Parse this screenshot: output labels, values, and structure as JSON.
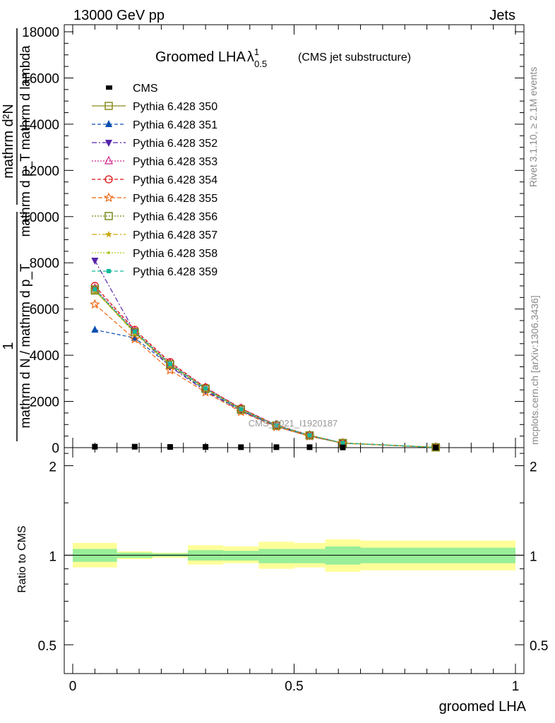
{
  "header": {
    "left": "13000 GeV pp",
    "right": "Jets"
  },
  "chart_data": {
    "type": "line",
    "title": "Groomed LHA",
    "title_lambda": "λ",
    "title_sup": "1",
    "title_sub": "0.5",
    "subtitle": "(CMS jet substructure)",
    "ylabel_main": "1 / mathrm d N / mathrm d p mathrm d p_T mathrm d lambda",
    "ylabel_num": "mathrm d²N",
    "ylabel_den": "mathrm d p_T mathrm d lambda",
    "ylabel_lead": "1",
    "ylabel_lower": "mathrm d N / mathrm d p_T",
    "ylabel_ratio": "Ratio to CMS",
    "xlabel": "groomed LHA",
    "watermark": "CMS_2021_I1920187",
    "side_top": "Rivet 3.1.10, ≥ 2.1M events",
    "side_bottom": "mcplots.cern.ch [arXiv:1306.3436]",
    "xlim": [
      0,
      1
    ],
    "ylim": [
      0,
      18000
    ],
    "ratio_ylim": [
      0.4,
      2.3
    ],
    "yticks": [
      {
        "v": 0,
        "label": "0"
      },
      {
        "v": 2000,
        "label": "2000"
      },
      {
        "v": 4000,
        "label": "4000"
      },
      {
        "v": 6000,
        "label": "6000"
      },
      {
        "v": 8000,
        "label": "8000"
      },
      {
        "v": 10000,
        "label": "10000"
      },
      {
        "v": 12000,
        "label": "12000"
      },
      {
        "v": 14000,
        "label": "14000"
      },
      {
        "v": 16000,
        "label": "16000"
      },
      {
        "v": 18000,
        "label": "18000"
      }
    ],
    "xticks": [
      {
        "v": 0,
        "label": "0"
      },
      {
        "v": 0.5,
        "label": "0.5"
      },
      {
        "v": 1,
        "label": "1"
      }
    ],
    "ratio_yticks": [
      {
        "v": 0.5,
        "label": "0.5"
      },
      {
        "v": 1,
        "label": "1"
      },
      {
        "v": 2,
        "label": "2"
      }
    ],
    "x": [
      0.05,
      0.14,
      0.22,
      0.3,
      0.38,
      0.46,
      0.535,
      0.61,
      0.82
    ],
    "cms": [
      40,
      40,
      30,
      30,
      20,
      20,
      20,
      10,
      5
    ],
    "series": [
      {
        "name": "Pythia 6.428 350",
        "color": "#8a8a1e",
        "dash": "",
        "marker": "square-open",
        "values": [
          6800,
          5000,
          3600,
          2550,
          1650,
          950,
          530,
          200,
          15
        ]
      },
      {
        "name": "Pythia 6.428 351",
        "color": "#0a4db0",
        "dash": "5,3",
        "marker": "triangle-up",
        "values": [
          5100,
          4750,
          3550,
          2500,
          1600,
          920,
          500,
          190,
          12
        ]
      },
      {
        "name": "Pythia 6.428 352",
        "color": "#5522aa",
        "dash": "7,3,2,3",
        "marker": "triangle-down",
        "values": [
          8100,
          5000,
          3500,
          2450,
          1600,
          920,
          500,
          190,
          12
        ]
      },
      {
        "name": "Pythia 6.428 353",
        "color": "#cc2288",
        "dash": "2,2",
        "marker": "triangle-up-open",
        "values": [
          6900,
          5050,
          3650,
          2600,
          1700,
          980,
          540,
          200,
          14
        ]
      },
      {
        "name": "Pythia 6.428 354",
        "color": "#dd1111",
        "dash": "5,3",
        "marker": "circle-open",
        "values": [
          7000,
          5100,
          3700,
          2600,
          1700,
          980,
          540,
          200,
          14
        ]
      },
      {
        "name": "Pythia 6.428 355",
        "color": "#ee6611",
        "dash": "6,3",
        "marker": "star-open",
        "values": [
          6200,
          4700,
          3350,
          2400,
          1550,
          900,
          490,
          185,
          12
        ]
      },
      {
        "name": "Pythia 6.428 356",
        "color": "#7a8a1a",
        "dash": "2,2",
        "marker": "square-open",
        "values": [
          6850,
          5000,
          3600,
          2550,
          1650,
          960,
          530,
          200,
          14
        ]
      },
      {
        "name": "Pythia 6.428 357",
        "color": "#ccaa11",
        "dash": "7,3,2,3",
        "marker": "star-small",
        "values": [
          6800,
          4950,
          3580,
          2530,
          1640,
          950,
          525,
          198,
          13
        ]
      },
      {
        "name": "Pythia 6.428 358",
        "color": "#aacc22",
        "dash": "2,2",
        "marker": "dot",
        "values": [
          6820,
          4980,
          3600,
          2540,
          1650,
          955,
          528,
          199,
          13
        ]
      },
      {
        "name": "Pythia 6.428 359",
        "color": "#11bb99",
        "dash": "5,3",
        "marker": "square-filled",
        "values": [
          6850,
          5020,
          3620,
          2560,
          1660,
          960,
          532,
          200,
          14
        ]
      }
    ],
    "ratio_bands": [
      {
        "x0": 0.0,
        "x1": 0.1,
        "inner": [
          0.95,
          1.05
        ],
        "outer": [
          0.91,
          1.1
        ]
      },
      {
        "x0": 0.1,
        "x1": 0.18,
        "inner": [
          0.98,
          1.02
        ],
        "outer": [
          0.97,
          1.03
        ]
      },
      {
        "x0": 0.18,
        "x1": 0.26,
        "inner": [
          0.99,
          1.015
        ],
        "outer": [
          0.98,
          1.02
        ]
      },
      {
        "x0": 0.26,
        "x1": 0.34,
        "inner": [
          0.96,
          1.04
        ],
        "outer": [
          0.93,
          1.08
        ]
      },
      {
        "x0": 0.34,
        "x1": 0.42,
        "inner": [
          0.96,
          1.035
        ],
        "outer": [
          0.94,
          1.07
        ]
      },
      {
        "x0": 0.42,
        "x1": 0.5,
        "inner": [
          0.94,
          1.05
        ],
        "outer": [
          0.9,
          1.11
        ]
      },
      {
        "x0": 0.5,
        "x1": 0.57,
        "inner": [
          0.94,
          1.05
        ],
        "outer": [
          0.91,
          1.1
        ]
      },
      {
        "x0": 0.57,
        "x1": 0.65,
        "inner": [
          0.93,
          1.07
        ],
        "outer": [
          0.88,
          1.13
        ]
      },
      {
        "x0": 0.65,
        "x1": 1.0,
        "inner": [
          0.94,
          1.06
        ],
        "outer": [
          0.89,
          1.12
        ]
      }
    ],
    "legend_title": "CMS",
    "band_colors": {
      "inner": "#99ee99",
      "outer": "#ffff99"
    }
  }
}
